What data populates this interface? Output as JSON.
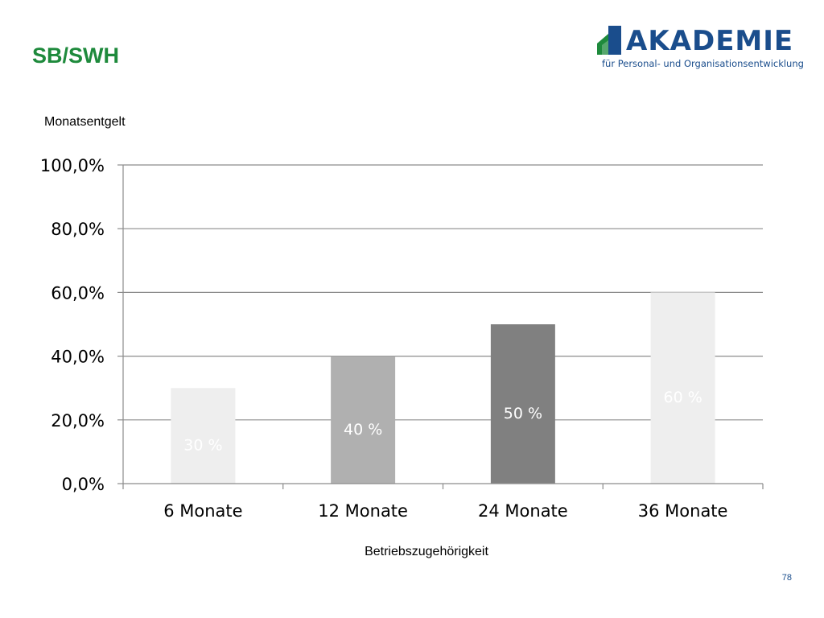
{
  "slide": {
    "title": "SB/SWH",
    "page_number": "78"
  },
  "logo": {
    "name": "AKADEMIE",
    "tagline": "für Personal- und Organisationsentwicklung",
    "colors": {
      "blue": "#1a4d8c",
      "green": "#1e8a3c"
    }
  },
  "chart_data": {
    "type": "bar",
    "title": "Monatsentgelt",
    "xlabel": "Betriebszugehörigkeit",
    "ylabel": "",
    "categories": [
      "6 Monate",
      "12 Monate",
      "24 Monate",
      "36 Monate"
    ],
    "values": [
      30,
      40,
      50,
      60
    ],
    "data_labels": [
      "30 %",
      "40 %",
      "50 %",
      "60 %"
    ],
    "bar_colors": [
      "#eeeeee",
      "#b0b0b0",
      "#808080",
      "#eeeeee"
    ],
    "label_colors": [
      "#ffffff",
      "#ffffff",
      "#ffffff",
      "#ffffff"
    ],
    "ylim": [
      0,
      100
    ],
    "yticks": [
      0,
      20,
      40,
      60,
      80,
      100
    ],
    "ytick_labels": [
      "0,0%",
      "20,0%",
      "40,0%",
      "60,0%",
      "80,0%",
      "100,0%"
    ],
    "grid": true,
    "legend": "none"
  }
}
